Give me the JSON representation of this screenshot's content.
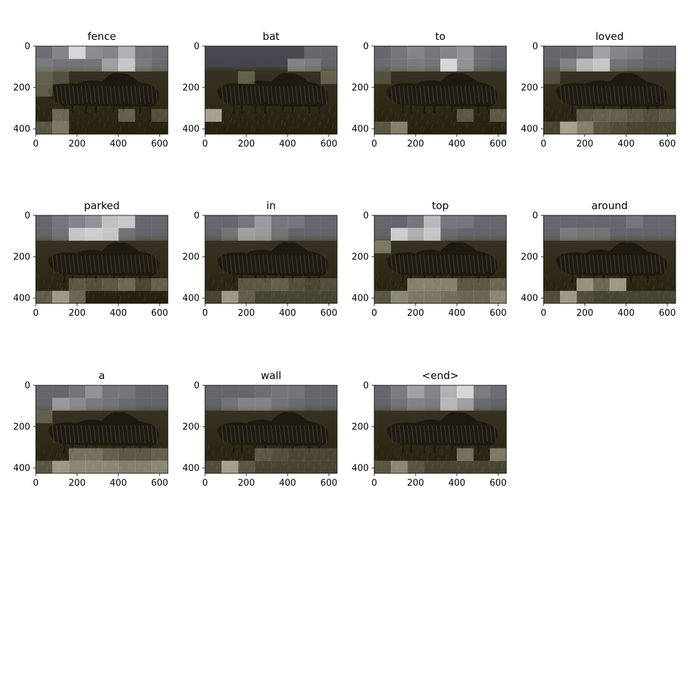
{
  "panels": [
    {
      "title": "fence",
      "cells": [
        [
          0.25,
          0.4,
          0.95,
          0.45,
          0.4,
          0.7,
          0.3,
          0.25
        ],
        [
          0.35,
          0.3,
          0.3,
          0.3,
          0.6,
          0.85,
          0.35,
          0.25
        ],
        [
          0.3,
          0.2,
          0,
          0,
          0,
          0,
          0,
          0
        ],
        [
          0.3,
          0,
          0,
          0,
          0,
          0,
          0,
          0
        ],
        [
          0,
          0,
          0,
          0,
          0,
          0,
          0,
          0
        ],
        [
          0,
          0.4,
          0,
          0,
          0,
          0.35,
          0,
          0.25
        ],
        [
          0.3,
          0.5,
          0,
          0,
          0,
          0,
          0,
          0
        ]
      ]
    },
    {
      "title": "bat",
      "cells": [
        [
          0,
          0,
          0,
          0,
          0,
          0,
          0.2,
          0.2
        ],
        [
          0,
          0,
          0,
          0,
          0,
          0.4,
          0.35,
          0.2
        ],
        [
          0,
          0,
          0.3,
          0,
          0,
          0,
          0,
          0.3
        ],
        [
          0,
          0,
          0,
          0,
          0,
          0,
          0,
          0
        ],
        [
          0,
          0,
          0,
          0,
          0,
          0,
          0,
          0
        ],
        [
          0.75,
          0,
          0,
          0,
          0,
          0,
          0,
          0
        ],
        [
          0,
          0,
          0,
          0,
          0,
          0,
          0,
          0
        ]
      ]
    },
    {
      "title": "to",
      "cells": [
        [
          0.2,
          0.3,
          0.4,
          0.3,
          0.4,
          0.5,
          0.25,
          0.2
        ],
        [
          0.25,
          0.3,
          0.35,
          0.3,
          0.95,
          0.5,
          0.25,
          0.2
        ],
        [
          0.2,
          0,
          0,
          0,
          0,
          0,
          0,
          0
        ],
        [
          0,
          0,
          0,
          0,
          0,
          0,
          0,
          0
        ],
        [
          0,
          0,
          0,
          0,
          0,
          0,
          0,
          0
        ],
        [
          0,
          0,
          0,
          0,
          0,
          0.3,
          0,
          0.3
        ],
        [
          0.3,
          0.55,
          0,
          0,
          0,
          0,
          0,
          0
        ]
      ]
    },
    {
      "title": "loved",
      "cells": [
        [
          0.2,
          0.2,
          0.3,
          0.6,
          0.4,
          0.35,
          0.2,
          0.2
        ],
        [
          0.2,
          0.4,
          0.75,
          0.85,
          0.3,
          0.25,
          0.2,
          0.2
        ],
        [
          0.2,
          0,
          0,
          0,
          0,
          0,
          0,
          0
        ],
        [
          0,
          0,
          0,
          0,
          0,
          0,
          0,
          0
        ],
        [
          0,
          0,
          0,
          0,
          0,
          0,
          0,
          0
        ],
        [
          0,
          0,
          0.3,
          0.35,
          0.35,
          0.3,
          0.25,
          0.3
        ],
        [
          0.2,
          0.75,
          0.55,
          0.3,
          0.25,
          0.2,
          0.2,
          0.2
        ]
      ]
    },
    {
      "title": "parked",
      "cells": [
        [
          0.2,
          0.3,
          0.4,
          0.5,
          0.8,
          0.85,
          0.2,
          0.2
        ],
        [
          0.2,
          0.3,
          0.85,
          0.9,
          0.85,
          0.3,
          0.2,
          0.2
        ],
        [
          0,
          0,
          0,
          0,
          0,
          0,
          0,
          0
        ],
        [
          0,
          0,
          0,
          0,
          0,
          0,
          0,
          0
        ],
        [
          0,
          0,
          0,
          0,
          0,
          0,
          0,
          0
        ],
        [
          0,
          0,
          0.3,
          0.25,
          0.3,
          0.4,
          0.2,
          0.35
        ],
        [
          0.35,
          0.7,
          0.4,
          0,
          0,
          0,
          0,
          0
        ]
      ]
    },
    {
      "title": "in",
      "cells": [
        [
          0.2,
          0.2,
          0.3,
          0.55,
          0.3,
          0.3,
          0.2,
          0.2
        ],
        [
          0.2,
          0.3,
          0.6,
          0.55,
          0.3,
          0.2,
          0.2,
          0.2
        ],
        [
          0,
          0,
          0,
          0,
          0,
          0,
          0,
          0
        ],
        [
          0,
          0,
          0,
          0,
          0,
          0,
          0,
          0
        ],
        [
          0,
          0,
          0,
          0,
          0,
          0,
          0,
          0
        ],
        [
          0,
          0,
          0.3,
          0.3,
          0.35,
          0.25,
          0.2,
          0.25
        ],
        [
          0.2,
          0.7,
          0.35,
          0.2,
          0.2,
          0.2,
          0.2,
          0.2
        ]
      ]
    },
    {
      "title": "top",
      "cells": [
        [
          0.2,
          0.2,
          0.3,
          0.75,
          0.3,
          0.3,
          0.2,
          0.2
        ],
        [
          0.2,
          0.9,
          0.7,
          0.85,
          0.25,
          0.2,
          0.2,
          0.2
        ],
        [
          0.45,
          0,
          0,
          0,
          0,
          0,
          0,
          0
        ],
        [
          0,
          0,
          0,
          0,
          0,
          0,
          0,
          0
        ],
        [
          0,
          0,
          0,
          0,
          0,
          0,
          0,
          0
        ],
        [
          0,
          0,
          0.55,
          0.55,
          0.55,
          0.3,
          0.3,
          0.4
        ],
        [
          0.3,
          0.6,
          0.5,
          0.5,
          0.45,
          0.4,
          0.4,
          0.6
        ]
      ]
    },
    {
      "title": "around",
      "cells": [
        [
          0.2,
          0.2,
          0.2,
          0.2,
          0.2,
          0.3,
          0.2,
          0.2
        ],
        [
          0.2,
          0.35,
          0.3,
          0.3,
          0.2,
          0.2,
          0.2,
          0.2
        ],
        [
          0,
          0,
          0,
          0,
          0,
          0,
          0,
          0
        ],
        [
          0,
          0,
          0,
          0,
          0,
          0,
          0,
          0
        ],
        [
          0,
          0,
          0,
          0,
          0,
          0,
          0,
          0
        ],
        [
          0,
          0,
          0.65,
          0.4,
          0.7,
          0,
          0,
          0
        ],
        [
          0.25,
          0.7,
          0.25,
          0.2,
          0.2,
          0.2,
          0.2,
          0.2
        ]
      ]
    },
    {
      "title": "a",
      "cells": [
        [
          0.2,
          0.2,
          0.3,
          0.5,
          0.3,
          0.3,
          0.2,
          0.2
        ],
        [
          0.2,
          0.55,
          0.45,
          0.35,
          0.3,
          0.25,
          0.2,
          0.2
        ],
        [
          0.3,
          0,
          0,
          0,
          0,
          0,
          0,
          0
        ],
        [
          0,
          0,
          0,
          0,
          0,
          0,
          0,
          0
        ],
        [
          0,
          0,
          0,
          0,
          0,
          0,
          0,
          0
        ],
        [
          0,
          0,
          0.45,
          0.45,
          0.35,
          0.3,
          0.3,
          0.35
        ],
        [
          0.3,
          0.7,
          0.6,
          0.6,
          0.6,
          0.55,
          0.55,
          0.6
        ]
      ]
    },
    {
      "title": "wall",
      "cells": [
        [
          0.2,
          0.2,
          0.2,
          0.25,
          0.3,
          0.3,
          0.2,
          0.2
        ],
        [
          0.2,
          0.3,
          0.4,
          0.4,
          0.3,
          0.25,
          0.2,
          0.2
        ],
        [
          0,
          0,
          0,
          0,
          0,
          0,
          0,
          0
        ],
        [
          0,
          0,
          0,
          0,
          0,
          0,
          0,
          0
        ],
        [
          0,
          0,
          0,
          0,
          0,
          0,
          0,
          0
        ],
        [
          0,
          0,
          0,
          0.3,
          0.25,
          0.2,
          0.2,
          0.2
        ],
        [
          0.25,
          0.75,
          0.3,
          0.2,
          0.2,
          0.2,
          0.2,
          0.2
        ]
      ]
    },
    {
      "title": "<end>",
      "cells": [
        [
          0.2,
          0.35,
          0.6,
          0.4,
          0.7,
          0.95,
          0.35,
          0.25
        ],
        [
          0.2,
          0.3,
          0.4,
          0.35,
          0.75,
          0.6,
          0.25,
          0.2
        ],
        [
          0,
          0,
          0,
          0,
          0,
          0,
          0,
          0
        ],
        [
          0,
          0,
          0,
          0,
          0,
          0,
          0,
          0
        ],
        [
          0,
          0,
          0,
          0,
          0,
          0,
          0,
          0
        ],
        [
          0,
          0,
          0,
          0,
          0,
          0.45,
          0,
          0.5
        ],
        [
          0.3,
          0.6,
          0.3,
          0.2,
          0.2,
          0.2,
          0.2,
          0.2
        ]
      ]
    }
  ],
  "axes": {
    "xticks": [
      "0",
      "200",
      "400",
      "600"
    ],
    "yticks": [
      "0",
      "200",
      "400"
    ]
  },
  "colors": {
    "sky": "#44454b",
    "horizon": "#3a3a30",
    "grass": "#332d1c",
    "grass_dark": "#25200f",
    "zebra_body": "#1e1a12",
    "zebra_stripe": "#4a4636",
    "cell_high": "#f4f1dc",
    "cell_cool": "#ffffff"
  }
}
